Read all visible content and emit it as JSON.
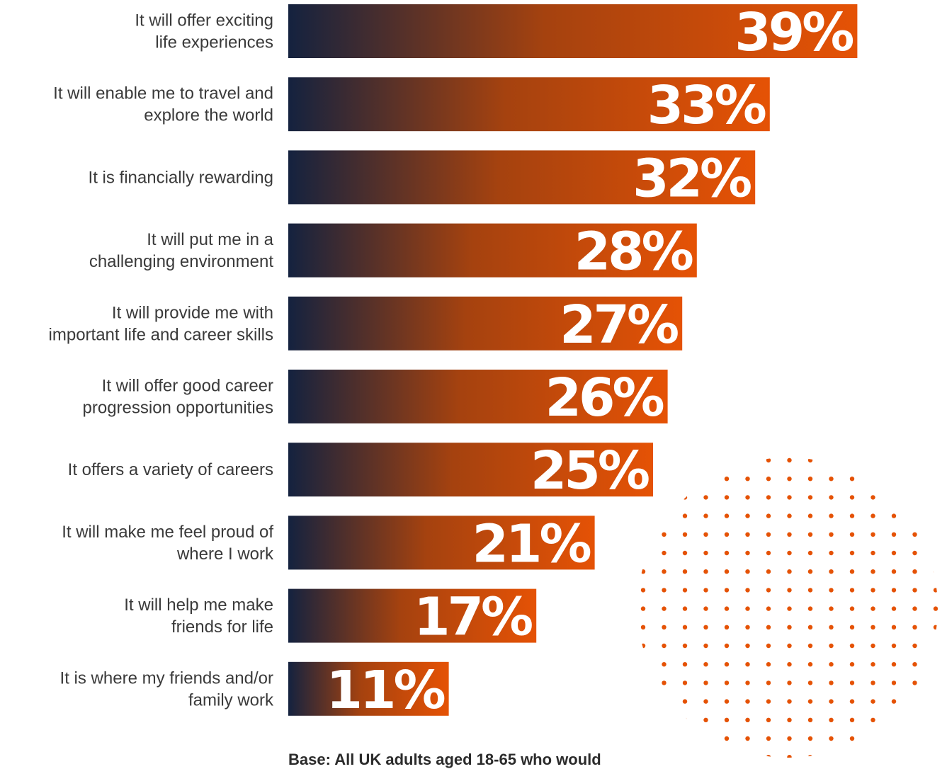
{
  "chart_data": {
    "type": "bar",
    "orientation": "horizontal",
    "categories": [
      [
        "It will offer exciting",
        "life experiences"
      ],
      [
        "It will enable me to travel and",
        "explore the world"
      ],
      [
        "It is financially rewarding"
      ],
      [
        "It will put me in a",
        "challenging environment"
      ],
      [
        "It will provide me with",
        "important life and career skills"
      ],
      [
        "It will offer good career",
        "progression opportunities"
      ],
      [
        "It offers a variety of careers"
      ],
      [
        "It will make me feel proud of",
        "where I work"
      ],
      [
        "It will help me make",
        "friends for life"
      ],
      [
        "It is where my friends and/or",
        "family work"
      ]
    ],
    "values": [
      39,
      33,
      32,
      28,
      27,
      26,
      25,
      21,
      17,
      11
    ],
    "value_labels": [
      "39%",
      "33%",
      "32%",
      "28%",
      "27%",
      "26%",
      "25%",
      "21%",
      "17%",
      "11%"
    ],
    "unit": "%",
    "bar_gradient": {
      "start": "#14223f",
      "end": "#e55205"
    },
    "decoration_dot_color": "#e55205",
    "grid": false,
    "legend": "none"
  },
  "footnote": "Base: All UK adults aged 18-65 who would"
}
